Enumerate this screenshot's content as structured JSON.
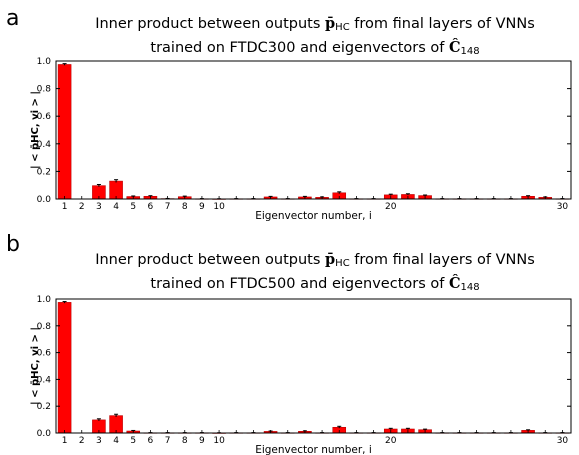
{
  "panels": [
    {
      "letter": "a",
      "title_line1_pre": "Inner product between outputs ",
      "title_line1_math": "p̄",
      "title_line1_sub": "HC",
      "title_line1_post": " from final layers of VNNs",
      "title_line2_pre": "trained on FTDC300 and eigenvectors of ",
      "title_line2_math": "Ĉ",
      "title_line2_sub": "148"
    },
    {
      "letter": "b",
      "title_line1_pre": "Inner product between outputs ",
      "title_line1_math": "p̄",
      "title_line1_sub": "HC",
      "title_line1_post": " from final layers of VNNs",
      "title_line2_pre": "trained on FTDC500 and eigenvectors of ",
      "title_line2_math": "Ĉ",
      "title_line2_sub": "148"
    }
  ],
  "colors": {
    "bar": "#ff0000",
    "bar_edge": "#b00000",
    "axis": "#000000"
  },
  "chart_data": [
    {
      "type": "bar",
      "title": "Inner product between outputs p̄HC from final layers of VNNs trained on FTDC300 and eigenvectors of Ĉ148",
      "xlabel": "Eigenvector number, i",
      "ylabel": "| < p̄HC, vi > |",
      "ylim": [
        0,
        1.0
      ],
      "xlim": [
        0.5,
        30.5
      ],
      "yticks": [
        "0.0",
        "0.2",
        "0.4",
        "0.6",
        "0.8",
        "1.0"
      ],
      "xtick_labels": [
        {
          "x": 1,
          "label": "1"
        },
        {
          "x": 2,
          "label": "2"
        },
        {
          "x": 3,
          "label": "3"
        },
        {
          "x": 4,
          "label": "4"
        },
        {
          "x": 5,
          "label": "5"
        },
        {
          "x": 6,
          "label": "6"
        },
        {
          "x": 7,
          "label": "7"
        },
        {
          "x": 8,
          "label": "8"
        },
        {
          "x": 9,
          "label": "9"
        },
        {
          "x": 10,
          "label": "10"
        },
        {
          "x": 20,
          "label": "20"
        },
        {
          "x": 30,
          "label": "30"
        }
      ],
      "x": [
        1,
        2,
        3,
        4,
        5,
        6,
        7,
        8,
        9,
        10,
        11,
        12,
        13,
        14,
        15,
        16,
        17,
        18,
        19,
        20,
        21,
        22,
        23,
        24,
        25,
        26,
        27,
        28,
        29,
        30
      ],
      "values": [
        0.975,
        0,
        0.097,
        0.13,
        0.018,
        0.02,
        0.003,
        0.017,
        0.002,
        0.001,
        0.002,
        0.002,
        0.015,
        0.002,
        0.015,
        0.012,
        0.045,
        0.002,
        0.002,
        0.03,
        0.033,
        0.025,
        0.002,
        0.002,
        0.002,
        0.002,
        0.002,
        0.02,
        0.012,
        0.002
      ],
      "error": [
        0.006,
        0,
        0.008,
        0.01,
        0.004,
        0.004,
        0.001,
        0.004,
        0.001,
        0.001,
        0.001,
        0.001,
        0.004,
        0.001,
        0.004,
        0.003,
        0.007,
        0.001,
        0.001,
        0.005,
        0.005,
        0.004,
        0.001,
        0.001,
        0.001,
        0.001,
        0.001,
        0.004,
        0.003,
        0.001
      ]
    },
    {
      "type": "bar",
      "title": "Inner product between outputs p̄HC from final layers of VNNs trained on FTDC500 and eigenvectors of Ĉ148",
      "xlabel": "Eigenvector number, i",
      "ylabel": "| < p̄HC, vi > |",
      "ylim": [
        0,
        1.0
      ],
      "xlim": [
        0.5,
        30.5
      ],
      "yticks": [
        "0.0",
        "0.2",
        "0.4",
        "0.6",
        "0.8",
        "1.0"
      ],
      "xtick_labels": [
        {
          "x": 1,
          "label": "1"
        },
        {
          "x": 2,
          "label": "2"
        },
        {
          "x": 3,
          "label": "3"
        },
        {
          "x": 4,
          "label": "4"
        },
        {
          "x": 5,
          "label": "5"
        },
        {
          "x": 6,
          "label": "6"
        },
        {
          "x": 7,
          "label": "7"
        },
        {
          "x": 8,
          "label": "8"
        },
        {
          "x": 9,
          "label": "9"
        },
        {
          "x": 10,
          "label": "10"
        },
        {
          "x": 20,
          "label": "20"
        },
        {
          "x": 30,
          "label": "30"
        }
      ],
      "x": [
        1,
        2,
        3,
        4,
        5,
        6,
        7,
        8,
        9,
        10,
        11,
        12,
        13,
        14,
        15,
        16,
        17,
        18,
        19,
        20,
        21,
        22,
        23,
        24,
        25,
        26,
        27,
        28,
        29,
        30
      ],
      "values": [
        0.975,
        0,
        0.098,
        0.13,
        0.015,
        0.002,
        0.002,
        0.002,
        0.002,
        0.001,
        0.002,
        0.002,
        0.012,
        0.002,
        0.013,
        0.002,
        0.043,
        0.002,
        0.002,
        0.03,
        0.03,
        0.025,
        0.002,
        0.002,
        0.002,
        0.002,
        0.002,
        0.02,
        0.002,
        0.002
      ],
      "error": [
        0.006,
        0,
        0.008,
        0.01,
        0.004,
        0.001,
        0.001,
        0.001,
        0.001,
        0.001,
        0.001,
        0.001,
        0.003,
        0.001,
        0.003,
        0.001,
        0.007,
        0.001,
        0.001,
        0.005,
        0.005,
        0.004,
        0.001,
        0.001,
        0.001,
        0.001,
        0.001,
        0.004,
        0.001,
        0.001
      ]
    }
  ]
}
